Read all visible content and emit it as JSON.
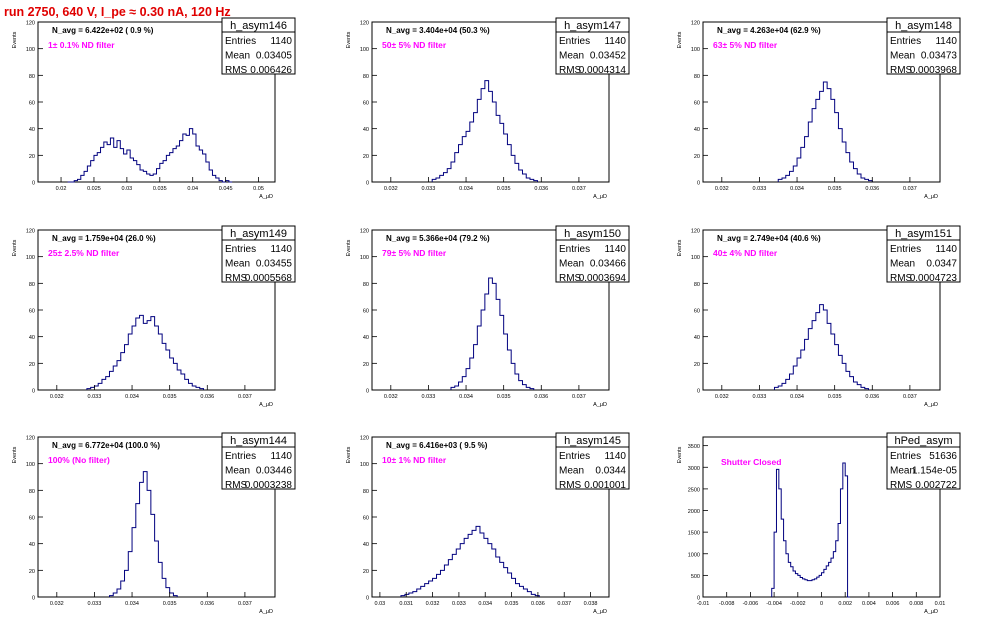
{
  "header": {
    "title": "run 2750,   640 V, I_pe ≈ 0.30 nA, 120 Hz",
    "title_color": "#e00000"
  },
  "stats_labels": {
    "entries": "Entries",
    "mean": "Mean",
    "rms": "RMS"
  },
  "y_axis_label": "Events",
  "x_axis_label": "A_μD",
  "colors": {
    "hist_line": "#00007f",
    "annotation": "#ff00ff",
    "frame": "#000000"
  },
  "chart_data": [
    {
      "type": "histogram",
      "name": "h_asym146",
      "stats": {
        "entries": "1140",
        "mean": "0.03405",
        "rms": "0.006426"
      },
      "navg": "N_avg = 6.422e+02 ( 0.9 %)",
      "filter": "1± 0.1% ND filter",
      "xlim": [
        0.0165,
        0.0525
      ],
      "ylim": [
        0,
        120
      ],
      "xticks": [
        {
          "v": 0.02,
          "l": "0.02"
        },
        {
          "v": 0.025,
          "l": "0.025"
        },
        {
          "v": 0.03,
          "l": "0.03"
        },
        {
          "v": 0.035,
          "l": "0.035"
        },
        {
          "v": 0.04,
          "l": "0.04"
        },
        {
          "v": 0.045,
          "l": "0.045"
        },
        {
          "v": 0.05,
          "l": "0.05"
        }
      ],
      "yticks": [
        0,
        20,
        40,
        60,
        80,
        100,
        120
      ],
      "bins": {
        "start": 0.021,
        "width": 0.0005,
        "values": [
          0,
          0,
          1,
          2,
          5,
          8,
          12,
          16,
          20,
          22,
          26,
          30,
          28,
          33,
          26,
          31,
          25,
          21,
          24,
          18,
          16,
          13,
          9,
          8,
          6,
          5,
          6,
          10,
          14,
          16,
          20,
          22,
          25,
          27,
          31,
          36,
          35,
          40,
          36,
          27,
          24,
          21,
          15,
          9,
          5,
          3,
          1,
          0,
          1,
          0
        ]
      }
    },
    {
      "type": "histogram",
      "name": "h_asym147",
      "stats": {
        "entries": "1140",
        "mean": "0.03452",
        "rms": "0.0004314"
      },
      "navg": "N_avg = 3.404e+04 (50.3 %)",
      "filter": "50± 5% ND filter",
      "xlim": [
        0.0315,
        0.0378
      ],
      "ylim": [
        0,
        120
      ],
      "xticks": [
        {
          "v": 0.032,
          "l": "0.032"
        },
        {
          "v": 0.033,
          "l": "0.033"
        },
        {
          "v": 0.034,
          "l": "0.034"
        },
        {
          "v": 0.035,
          "l": "0.035"
        },
        {
          "v": 0.036,
          "l": "0.036"
        },
        {
          "v": 0.037,
          "l": "0.037"
        }
      ],
      "yticks": [
        0,
        20,
        40,
        60,
        80,
        100,
        120
      ],
      "bins": {
        "start": 0.0331,
        "width": 0.0001,
        "values": [
          2,
          3,
          5,
          7,
          10,
          15,
          22,
          28,
          34,
          38,
          45,
          52,
          62,
          70,
          76,
          68,
          60,
          50,
          44,
          36,
          28,
          20,
          14,
          9,
          6,
          3,
          2,
          1
        ]
      }
    },
    {
      "type": "histogram",
      "name": "h_asym148",
      "stats": {
        "entries": "1140",
        "mean": "0.03473",
        "rms": "0.0003968"
      },
      "navg": "N_avg = 4.263e+04 (62.9 %)",
      "filter": "63± 5% ND filter",
      "xlim": [
        0.0315,
        0.0378
      ],
      "ylim": [
        0,
        120
      ],
      "xticks": [
        {
          "v": 0.032,
          "l": "0.032"
        },
        {
          "v": 0.033,
          "l": "0.033"
        },
        {
          "v": 0.034,
          "l": "0.034"
        },
        {
          "v": 0.035,
          "l": "0.035"
        },
        {
          "v": 0.036,
          "l": "0.036"
        },
        {
          "v": 0.037,
          "l": "0.037"
        }
      ],
      "yticks": [
        0,
        20,
        40,
        60,
        80,
        100,
        120
      ],
      "bins": {
        "start": 0.0335,
        "width": 0.0001,
        "values": [
          2,
          3,
          5,
          8,
          12,
          18,
          26,
          34,
          45,
          55,
          62,
          68,
          75,
          70,
          62,
          52,
          40,
          30,
          22,
          15,
          10,
          6,
          3,
          2,
          1
        ]
      }
    },
    {
      "type": "histogram",
      "name": "h_asym149",
      "stats": {
        "entries": "1140",
        "mean": "0.03455",
        "rms": "0.0005568"
      },
      "navg": "N_avg = 1.759e+04 (26.0 %)",
      "filter": "25± 2.5% ND filter",
      "xlim": [
        0.0315,
        0.0378
      ],
      "ylim": [
        0,
        120
      ],
      "xticks": [
        {
          "v": 0.032,
          "l": "0.032"
        },
        {
          "v": 0.033,
          "l": "0.033"
        },
        {
          "v": 0.034,
          "l": "0.034"
        },
        {
          "v": 0.035,
          "l": "0.035"
        },
        {
          "v": 0.036,
          "l": "0.036"
        },
        {
          "v": 0.037,
          "l": "0.037"
        }
      ],
      "yticks": [
        0,
        20,
        40,
        60,
        80,
        100,
        120
      ],
      "bins": {
        "start": 0.0328,
        "width": 0.0001,
        "values": [
          1,
          2,
          3,
          5,
          8,
          10,
          14,
          18,
          22,
          28,
          34,
          42,
          48,
          54,
          56,
          50,
          52,
          55,
          48,
          42,
          35,
          30,
          24,
          20,
          15,
          12,
          8,
          5,
          3,
          2,
          1
        ]
      }
    },
    {
      "type": "histogram",
      "name": "h_asym150",
      "stats": {
        "entries": "1140",
        "mean": "0.03466",
        "rms": "0.0003694"
      },
      "navg": "N_avg = 5.366e+04 (79.2 %)",
      "filter": "79± 5% ND filter",
      "xlim": [
        0.0315,
        0.0378
      ],
      "ylim": [
        0,
        120
      ],
      "xticks": [
        {
          "v": 0.032,
          "l": "0.032"
        },
        {
          "v": 0.033,
          "l": "0.033"
        },
        {
          "v": 0.034,
          "l": "0.034"
        },
        {
          "v": 0.035,
          "l": "0.035"
        },
        {
          "v": 0.036,
          "l": "0.036"
        },
        {
          "v": 0.037,
          "l": "0.037"
        }
      ],
      "yticks": [
        0,
        20,
        40,
        60,
        80,
        100,
        120
      ],
      "bins": {
        "start": 0.0336,
        "width": 0.0001,
        "values": [
          2,
          3,
          6,
          10,
          16,
          24,
          34,
          48,
          60,
          72,
          84,
          80,
          68,
          56,
          42,
          30,
          20,
          12,
          7,
          4,
          2,
          1
        ]
      }
    },
    {
      "type": "histogram",
      "name": "h_asym151",
      "stats": {
        "entries": "1140",
        "mean": "0.0347",
        "rms": "0.0004723"
      },
      "navg": "N_avg = 2.749e+04 (40.6 %)",
      "filter": "40± 4% ND filter",
      "xlim": [
        0.0315,
        0.0378
      ],
      "ylim": [
        0,
        120
      ],
      "xticks": [
        {
          "v": 0.032,
          "l": "0.032"
        },
        {
          "v": 0.033,
          "l": "0.033"
        },
        {
          "v": 0.034,
          "l": "0.034"
        },
        {
          "v": 0.035,
          "l": "0.035"
        },
        {
          "v": 0.036,
          "l": "0.036"
        },
        {
          "v": 0.037,
          "l": "0.037"
        }
      ],
      "yticks": [
        0,
        20,
        40,
        60,
        80,
        100,
        120
      ],
      "bins": {
        "start": 0.0334,
        "width": 0.0001,
        "values": [
          2,
          3,
          5,
          8,
          12,
          18,
          24,
          30,
          38,
          46,
          52,
          58,
          64,
          60,
          50,
          42,
          34,
          26,
          20,
          14,
          10,
          6,
          4,
          2,
          1
        ]
      }
    },
    {
      "type": "histogram",
      "name": "h_asym144",
      "stats": {
        "entries": "1140",
        "mean": "0.03446",
        "rms": "0.0003238"
      },
      "navg": "N_avg = 6.772e+04 (100.0 %)",
      "filter": "100% (No filter)",
      "xlim": [
        0.0315,
        0.0378
      ],
      "ylim": [
        0,
        120
      ],
      "xticks": [
        {
          "v": 0.032,
          "l": "0.032"
        },
        {
          "v": 0.033,
          "l": "0.033"
        },
        {
          "v": 0.034,
          "l": "0.034"
        },
        {
          "v": 0.035,
          "l": "0.035"
        },
        {
          "v": 0.036,
          "l": "0.036"
        },
        {
          "v": 0.037,
          "l": "0.037"
        }
      ],
      "yticks": [
        0,
        20,
        40,
        60,
        80,
        100,
        120
      ],
      "bins": {
        "start": 0.0334,
        "width": 0.0001,
        "values": [
          1,
          3,
          6,
          12,
          20,
          34,
          52,
          70,
          86,
          94,
          80,
          62,
          42,
          26,
          14,
          7,
          3,
          1
        ]
      }
    },
    {
      "type": "histogram",
      "name": "h_asym145",
      "stats": {
        "entries": "1140",
        "mean": "0.0344",
        "rms": "0.001001"
      },
      "navg": "N_avg = 6.416e+03 ( 9.5 %)",
      "filter": "10± 1% ND filter",
      "xlim": [
        0.0297,
        0.0387
      ],
      "ylim": [
        0,
        120
      ],
      "xticks": [
        {
          "v": 0.03,
          "l": "0.03"
        },
        {
          "v": 0.031,
          "l": "0.031"
        },
        {
          "v": 0.032,
          "l": "0.032"
        },
        {
          "v": 0.033,
          "l": "0.033"
        },
        {
          "v": 0.034,
          "l": "0.034"
        },
        {
          "v": 0.035,
          "l": "0.035"
        },
        {
          "v": 0.036,
          "l": "0.036"
        },
        {
          "v": 0.037,
          "l": "0.037"
        },
        {
          "v": 0.038,
          "l": "0.038"
        }
      ],
      "yticks": [
        0,
        20,
        40,
        60,
        80,
        100,
        120
      ],
      "bins": {
        "start": 0.0308,
        "width": 0.00015,
        "values": [
          1,
          2,
          3,
          4,
          6,
          8,
          10,
          12,
          14,
          17,
          20,
          24,
          28,
          32,
          36,
          40,
          44,
          47,
          50,
          53,
          48,
          44,
          40,
          36,
          30,
          26,
          22,
          18,
          14,
          10,
          8,
          6,
          4,
          2,
          1
        ]
      }
    },
    {
      "type": "histogram",
      "name": "hPed_asym",
      "stats": {
        "entries": "51636",
        "mean": "1.154e-05",
        "rms": "0.002722"
      },
      "annotation": "Shutter Closed",
      "xlim": [
        -0.01,
        0.01
      ],
      "ylim": [
        0,
        3700
      ],
      "xticks": [
        {
          "v": -0.01,
          "l": "-0.01"
        },
        {
          "v": -0.008,
          "l": "-0.008"
        },
        {
          "v": -0.006,
          "l": "-0.006"
        },
        {
          "v": -0.004,
          "l": "-0.004"
        },
        {
          "v": -0.002,
          "l": "-0.002"
        },
        {
          "v": 0,
          "l": "0"
        },
        {
          "v": 0.002,
          "l": "0.002"
        },
        {
          "v": 0.004,
          "l": "0.004"
        },
        {
          "v": 0.006,
          "l": "0.006"
        },
        {
          "v": 0.008,
          "l": "0.008"
        },
        {
          "v": 0.01,
          "l": "0.01"
        }
      ],
      "yticks": [
        0,
        500,
        1000,
        1500,
        2000,
        2500,
        3000,
        3500
      ],
      "bins": {
        "start": -0.0042,
        "width": 0.0002,
        "values": [
          200,
          1500,
          2950,
          2500,
          1800,
          1300,
          1000,
          800,
          700,
          600,
          540,
          500,
          450,
          420,
          400,
          380,
          380,
          400,
          420,
          460,
          500,
          560,
          640,
          720,
          800,
          900,
          1050,
          1300,
          1700,
          2500,
          3100,
          2800,
          0
        ]
      }
    }
  ]
}
